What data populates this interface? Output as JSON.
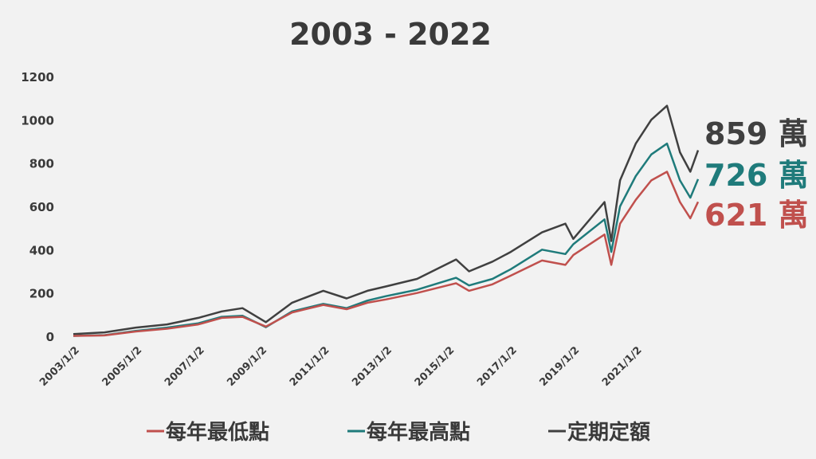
{
  "chart_data": {
    "type": "line",
    "title": "2003 - 2022",
    "xlabel": "",
    "ylabel": "",
    "ylim": [
      0,
      1200
    ],
    "yticks": [
      "0",
      "200",
      "400",
      "600",
      "800",
      "1000",
      "1200"
    ],
    "xticks": [
      "2003/1/2",
      "2005/1/2",
      "2007/1/2",
      "2009/1/2",
      "2011/1/2",
      "2013/1/2",
      "2015/1/2",
      "2017/1/2",
      "2019/1/2",
      "2021/1/2"
    ],
    "x": [
      "2003/1/2",
      "2004/1/2",
      "2005/1/2",
      "2006/1/2",
      "2007/1/2",
      "2007/10/1",
      "2008/6/1",
      "2009/3/1",
      "2010/1/2",
      "2011/1/2",
      "2011/10/1",
      "2012/6/1",
      "2013/1/2",
      "2014/1/2",
      "2015/4/1",
      "2015/9/1",
      "2016/6/1",
      "2017/1/2",
      "2018/1/2",
      "2018/10/1",
      "2019/1/2",
      "2020/1/2",
      "2020/3/20",
      "2020/7/1",
      "2021/1/2",
      "2021/7/1",
      "2022/1/2",
      "2022/6/1",
      "2022/10/1",
      "2022/12/30"
    ],
    "grid": false,
    "legend_position": "bottom",
    "series": [
      {
        "name": "每年最低點",
        "color": "#c0504d",
        "values": [
          2,
          4,
          22,
          35,
          55,
          85,
          90,
          45,
          110,
          145,
          125,
          155,
          170,
          200,
          245,
          210,
          240,
          280,
          350,
          330,
          375,
          470,
          330,
          520,
          630,
          720,
          760,
          620,
          545,
          621
        ],
        "end_label": "621 萬"
      },
      {
        "name": "每年最高點",
        "color": "#1f7b7b",
        "values": [
          2,
          5,
          25,
          40,
          60,
          90,
          95,
          42,
          115,
          150,
          130,
          165,
          185,
          215,
          270,
          235,
          265,
          310,
          400,
          380,
          425,
          540,
          390,
          600,
          740,
          840,
          890,
          720,
          640,
          726
        ],
        "end_label": "726 萬"
      },
      {
        "name": "定期定額",
        "color": "#404040",
        "values": [
          10,
          18,
          40,
          55,
          85,
          115,
          130,
          65,
          155,
          210,
          175,
          210,
          230,
          265,
          355,
          300,
          345,
          390,
          480,
          520,
          450,
          620,
          440,
          720,
          890,
          1000,
          1065,
          850,
          760,
          859
        ],
        "end_label": "859 萬"
      }
    ]
  }
}
